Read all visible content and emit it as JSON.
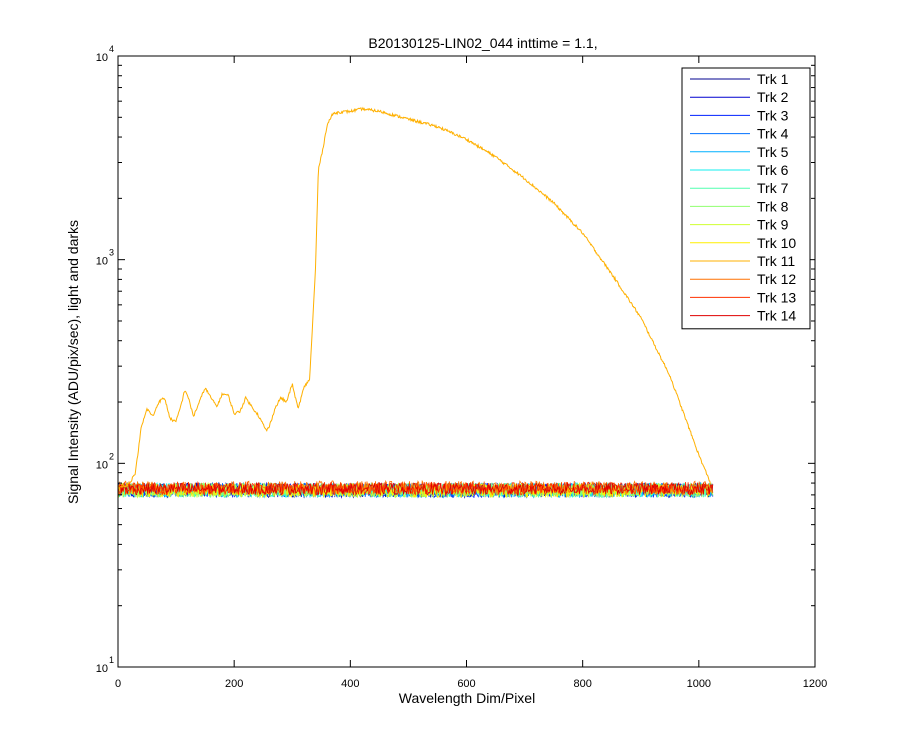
{
  "chart_data": {
    "type": "line",
    "title": "B20130125-LIN02_044 inttime = 1.1,",
    "xlabel": "Wavelength Dim/Pixel",
    "ylabel": "Signal Intensity (ADU/pix/sec), light and darks",
    "xlim": [
      0,
      1200
    ],
    "ylim": [
      10,
      10000
    ],
    "yscale": "log",
    "grid": false,
    "legend_position": "top-right",
    "x_ticks": [
      0,
      200,
      400,
      600,
      800,
      1000,
      1200
    ],
    "x_tick_labels": [
      "0",
      "200",
      "400",
      "600",
      "800",
      "1000",
      "1200"
    ],
    "y_ticks": [
      {
        "value": 10,
        "base": "10",
        "exp": "1"
      },
      {
        "value": 100,
        "base": "10",
        "exp": "2"
      },
      {
        "value": 1000,
        "base": "10",
        "exp": "3"
      },
      {
        "value": 10000,
        "base": "10",
        "exp": "4"
      }
    ],
    "series": [
      {
        "name": "Trk 1",
        "color": "#00008f",
        "noise_band": [
          68,
          80
        ],
        "x": [
          0,
          1024
        ],
        "y": [
          74,
          74
        ]
      },
      {
        "name": "Trk 2",
        "color": "#0000cf",
        "noise_band": [
          68,
          80
        ],
        "x": [
          0,
          1024
        ],
        "y": [
          74,
          74
        ]
      },
      {
        "name": "Trk 3",
        "color": "#0020ff",
        "noise_band": [
          68,
          80
        ],
        "x": [
          0,
          1024
        ],
        "y": [
          74,
          74
        ]
      },
      {
        "name": "Trk 4",
        "color": "#0070ff",
        "noise_band": [
          68,
          80
        ],
        "x": [
          0,
          1024
        ],
        "y": [
          74,
          74
        ]
      },
      {
        "name": "Trk 5",
        "color": "#00b0ff",
        "noise_band": [
          68,
          80
        ],
        "x": [
          0,
          1024
        ],
        "y": [
          74,
          74
        ]
      },
      {
        "name": "Trk 6",
        "color": "#10efef",
        "noise_band": [
          68,
          80
        ],
        "x": [
          0,
          1024
        ],
        "y": [
          74,
          74
        ]
      },
      {
        "name": "Trk 7",
        "color": "#50ffaf",
        "noise_band": [
          68,
          80
        ],
        "x": [
          0,
          1024
        ],
        "y": [
          74,
          74
        ]
      },
      {
        "name": "Trk 8",
        "color": "#90ff6f",
        "noise_band": [
          68,
          80
        ],
        "x": [
          0,
          1024
        ],
        "y": [
          74,
          74
        ]
      },
      {
        "name": "Trk 9",
        "color": "#cfff30",
        "noise_band": [
          68,
          80
        ],
        "x": [
          0,
          1024
        ],
        "y": [
          74,
          74
        ]
      },
      {
        "name": "Trk 10",
        "color": "#ffef00",
        "noise_band": [
          68,
          80
        ],
        "x": [
          0,
          1024
        ],
        "y": [
          74,
          74
        ]
      },
      {
        "name": "Trk 11",
        "color": "#ffb000",
        "noise_band": null,
        "x": [
          0,
          20,
          30,
          40,
          50,
          60,
          70,
          80,
          90,
          100,
          110,
          115,
          120,
          130,
          140,
          150,
          160,
          170,
          180,
          190,
          200,
          210,
          220,
          230,
          240,
          250,
          255,
          260,
          270,
          280,
          290,
          300,
          310,
          320,
          330,
          340,
          345,
          350,
          355,
          360,
          370,
          380,
          400,
          420,
          450,
          500,
          550,
          600,
          650,
          700,
          750,
          800,
          850,
          900,
          950,
          1000,
          1020
        ],
        "y": [
          75,
          80,
          90,
          150,
          185,
          170,
          200,
          210,
          165,
          160,
          200,
          230,
          215,
          170,
          200,
          235,
          210,
          190,
          220,
          215,
          175,
          180,
          210,
          190,
          175,
          155,
          145,
          150,
          185,
          210,
          200,
          245,
          185,
          235,
          260,
          900,
          2800,
          3200,
          3800,
          4600,
          5200,
          5300,
          5350,
          5500,
          5350,
          4900,
          4500,
          3900,
          3200,
          2500,
          1900,
          1350,
          850,
          520,
          270,
          110,
          80
        ]
      },
      {
        "name": "Trk 12",
        "color": "#ff7000",
        "noise_band": [
          70,
          82
        ],
        "x": [
          0,
          1024
        ],
        "y": [
          76,
          76
        ]
      },
      {
        "name": "Trk 13",
        "color": "#ff3000",
        "noise_band": [
          70,
          81
        ],
        "x": [
          0,
          1024
        ],
        "y": [
          76,
          76
        ]
      },
      {
        "name": "Trk 14",
        "color": "#df0000",
        "noise_band": [
          70,
          80
        ],
        "x": [
          0,
          1024
        ],
        "y": [
          75,
          75
        ]
      }
    ]
  }
}
